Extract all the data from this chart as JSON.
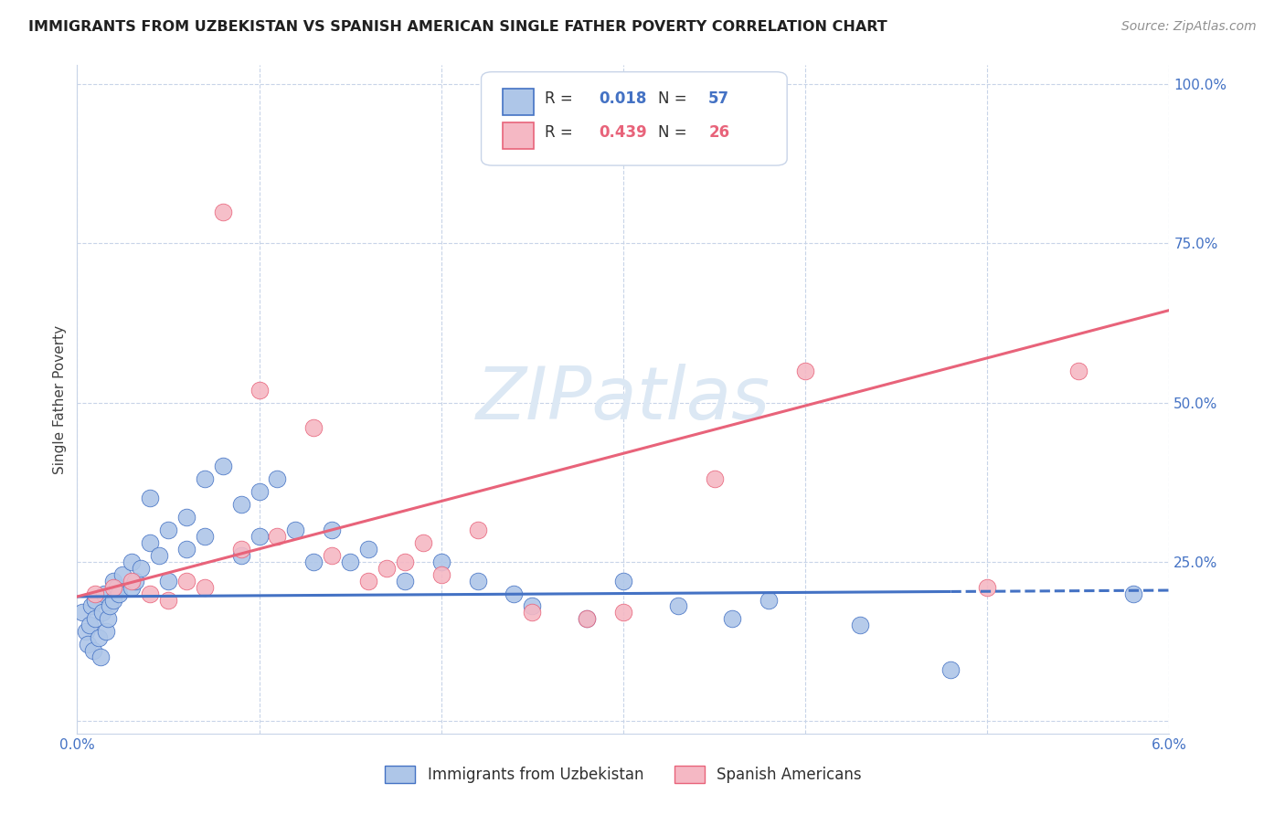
{
  "title": "IMMIGRANTS FROM UZBEKISTAN VS SPANISH AMERICAN SINGLE FATHER POVERTY CORRELATION CHART",
  "source": "Source: ZipAtlas.com",
  "ylabel": "Single Father Poverty",
  "watermark": "ZIPatlas",
  "xmin": 0.0,
  "xmax": 0.06,
  "ymin": -0.02,
  "ymax": 1.03,
  "scatter_color_blue": "#aec6e8",
  "scatter_color_pink": "#f5b8c4",
  "line_color_blue": "#4472c4",
  "line_color_pink": "#e8637a",
  "grid_color": "#c8d4e8",
  "axis_color": "#4472c4",
  "title_color": "#202020",
  "source_color": "#909090",
  "background_color": "#ffffff",
  "watermark_color": "#dce8f4",
  "legend_label1": "Immigrants from Uzbekistan",
  "legend_label2": "Spanish Americans",
  "blue_trend_x0": 0.0,
  "blue_trend_x1": 0.06,
  "blue_trend_y0": 0.195,
  "blue_trend_y1": 0.205,
  "blue_trend_solid_end": 0.048,
  "pink_trend_x0": 0.0,
  "pink_trend_x1": 0.06,
  "pink_trend_y0": 0.195,
  "pink_trend_y1": 0.645,
  "blue_x": [
    0.0003,
    0.0005,
    0.0006,
    0.0007,
    0.0008,
    0.0009,
    0.001,
    0.001,
    0.0012,
    0.0013,
    0.0014,
    0.0015,
    0.0016,
    0.0017,
    0.0018,
    0.002,
    0.002,
    0.0022,
    0.0023,
    0.0025,
    0.003,
    0.003,
    0.0032,
    0.0035,
    0.004,
    0.004,
    0.0045,
    0.005,
    0.005,
    0.006,
    0.006,
    0.007,
    0.007,
    0.008,
    0.009,
    0.009,
    0.01,
    0.01,
    0.011,
    0.012,
    0.013,
    0.014,
    0.015,
    0.016,
    0.018,
    0.02,
    0.022,
    0.024,
    0.025,
    0.028,
    0.03,
    0.033,
    0.036,
    0.038,
    0.043,
    0.048,
    0.058
  ],
  "blue_y": [
    0.17,
    0.14,
    0.12,
    0.15,
    0.18,
    0.11,
    0.16,
    0.19,
    0.13,
    0.1,
    0.17,
    0.2,
    0.14,
    0.16,
    0.18,
    0.22,
    0.19,
    0.21,
    0.2,
    0.23,
    0.25,
    0.21,
    0.22,
    0.24,
    0.28,
    0.35,
    0.26,
    0.3,
    0.22,
    0.32,
    0.27,
    0.38,
    0.29,
    0.4,
    0.34,
    0.26,
    0.36,
    0.29,
    0.38,
    0.3,
    0.25,
    0.3,
    0.25,
    0.27,
    0.22,
    0.25,
    0.22,
    0.2,
    0.18,
    0.16,
    0.22,
    0.18,
    0.16,
    0.19,
    0.15,
    0.08,
    0.2
  ],
  "pink_x": [
    0.001,
    0.002,
    0.003,
    0.004,
    0.005,
    0.006,
    0.007,
    0.008,
    0.009,
    0.01,
    0.011,
    0.013,
    0.014,
    0.016,
    0.017,
    0.018,
    0.019,
    0.02,
    0.022,
    0.025,
    0.028,
    0.03,
    0.035,
    0.04,
    0.05,
    0.055
  ],
  "pink_y": [
    0.2,
    0.21,
    0.22,
    0.2,
    0.19,
    0.22,
    0.21,
    0.8,
    0.27,
    0.52,
    0.29,
    0.46,
    0.26,
    0.22,
    0.24,
    0.25,
    0.28,
    0.23,
    0.3,
    0.17,
    0.16,
    0.17,
    0.38,
    0.55,
    0.21,
    0.55
  ]
}
